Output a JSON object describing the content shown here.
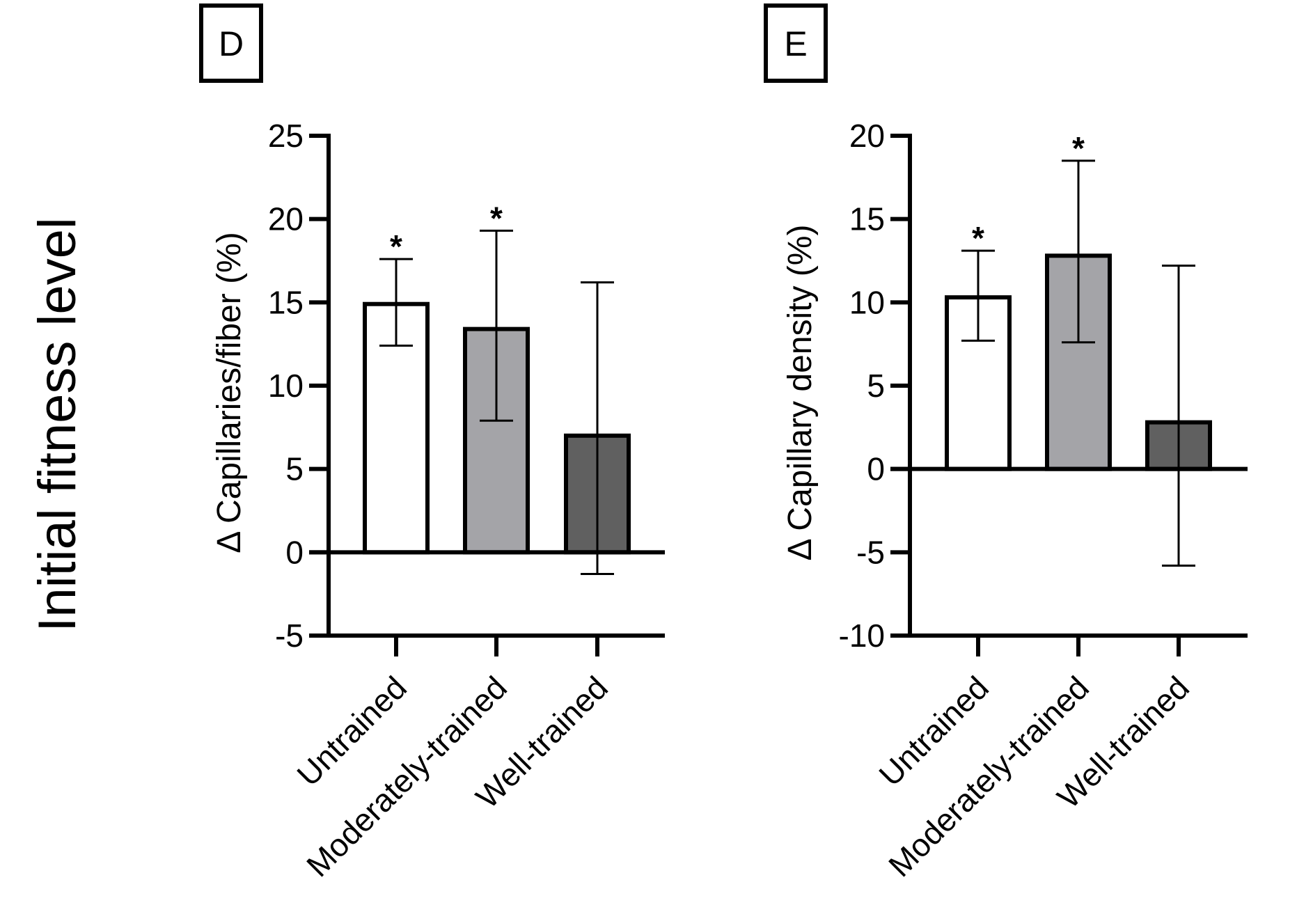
{
  "side_title": "Initial fitness level",
  "chart_data": [
    {
      "type": "bar",
      "panel": "D",
      "ylabel": "Δ Capillaries/fiber (%)",
      "ylim": [
        -5,
        25
      ],
      "yticks": [
        25,
        20,
        15,
        10,
        5,
        0,
        -5
      ],
      "categories": [
        "Untrained",
        "Moderately-trained",
        "Well-trained"
      ],
      "values": [
        14.9,
        13.4,
        7.0
      ],
      "error_upper": [
        17.6,
        19.3,
        16.2
      ],
      "error_lower": [
        12.4,
        7.9,
        -1.3
      ],
      "significance": [
        "*",
        "*",
        ""
      ],
      "bar_colors": [
        "#ffffff",
        "#a4a4a8",
        "#606060"
      ]
    },
    {
      "type": "bar",
      "panel": "E",
      "ylabel": "Δ Capillary density (%)",
      "ylim": [
        -10,
        20
      ],
      "yticks": [
        20,
        15,
        10,
        5,
        0,
        -5,
        -10
      ],
      "categories": [
        "Untrained",
        "Moderately-trained",
        "Well-trained"
      ],
      "values": [
        10.3,
        12.8,
        2.8
      ],
      "error_upper": [
        13.1,
        18.5,
        12.2
      ],
      "error_lower": [
        7.7,
        7.6,
        -5.8
      ],
      "significance": [
        "*",
        "*",
        ""
      ],
      "bar_colors": [
        "#ffffff",
        "#a4a4a8",
        "#606060"
      ]
    }
  ]
}
